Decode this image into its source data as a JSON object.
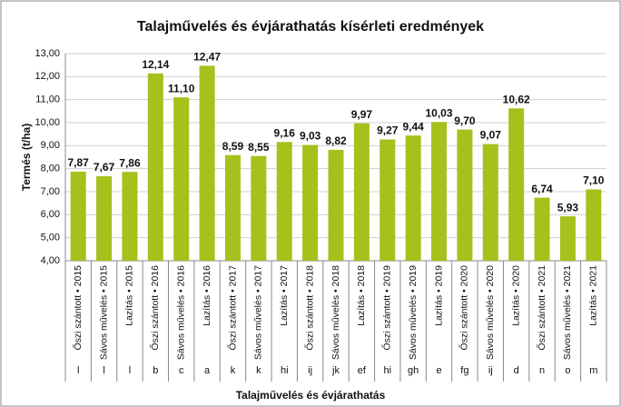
{
  "chart_data": {
    "type": "bar",
    "title": "Talajművelés és évjárathatás kísérleti eredmények",
    "x_label": "Talajművelés és évjárathatás",
    "y_label": "Termés (t/ha)",
    "categories": [
      "Őszi szántott • 2015",
      "Sávos művelés • 2015",
      "Lazítás • 2015",
      "Őszi szántott • 2016",
      "Sávos művelés • 2016",
      "Lazítás • 2016",
      "Őszi szántott • 2017",
      "Sávos művelés • 2017",
      "Lazítás • 2017",
      "Őszi szántott • 2018",
      "Sávos művelés • 2018",
      "Lazítás • 2018",
      "Őszi szántott • 2019",
      "Sávos művelés • 2019",
      "Lazítás • 2019",
      "Őszi szántott • 2020",
      "Sávos művelés • 2020",
      "Lazítás • 2020",
      "Őszi szántott • 2021",
      "Sávos művelés • 2021",
      "Lazítás • 2021"
    ],
    "letters": [
      "l",
      "l",
      "l",
      "b",
      "c",
      "a",
      "k",
      "k",
      "hi",
      "ij",
      "jk",
      "ef",
      "hi",
      "gh",
      "e",
      "fg",
      "ij",
      "d",
      "n",
      "o",
      "m"
    ],
    "values": [
      7.87,
      7.67,
      7.86,
      12.14,
      11.1,
      12.47,
      8.59,
      8.55,
      9.16,
      9.03,
      8.82,
      9.97,
      9.27,
      9.44,
      10.03,
      9.7,
      9.07,
      10.62,
      6.74,
      5.93,
      7.1
    ],
    "value_labels": [
      "7,87",
      "7,67",
      "7,86",
      "12,14",
      "11,10",
      "12,47",
      "8,59",
      "8,55",
      "9,16",
      "9,03",
      "8,82",
      "9,97",
      "9,27",
      "9,44",
      "10,03",
      "9,70",
      "9,07",
      "10,62",
      "6,74",
      "5,93",
      "7,10"
    ],
    "color": "#a6c11c",
    "ylim": [
      4,
      13
    ],
    "yticks": [
      {
        "value": 4,
        "label": "4,00"
      },
      {
        "value": 5,
        "label": "5,00"
      },
      {
        "value": 6,
        "label": "6,00"
      },
      {
        "value": 7,
        "label": "7,00"
      },
      {
        "value": 8,
        "label": "8,00"
      },
      {
        "value": 9,
        "label": "9,00"
      },
      {
        "value": 10,
        "label": "10,00"
      },
      {
        "value": 11,
        "label": "11,00"
      },
      {
        "value": 12,
        "label": "12,00"
      },
      {
        "value": 13,
        "label": "13,00"
      }
    ],
    "grid": true
  }
}
